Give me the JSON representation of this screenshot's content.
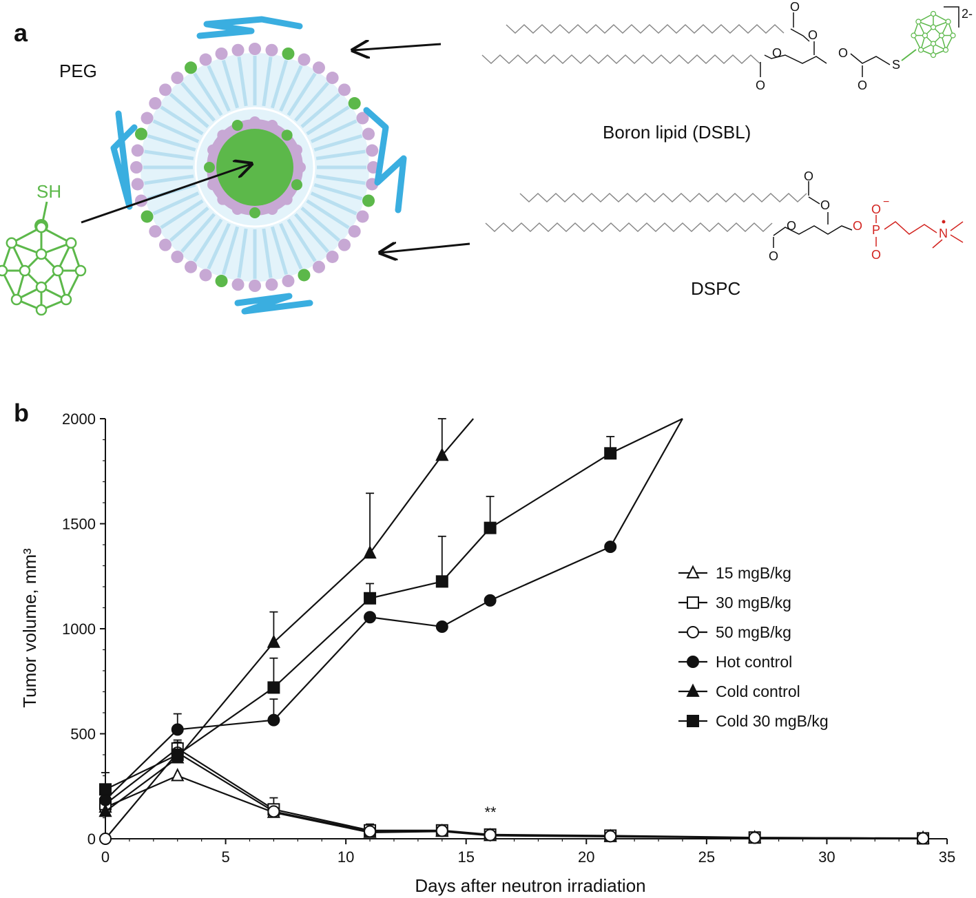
{
  "panel_a": {
    "label": "a",
    "peg_label": "PEG",
    "sh_label": "SH",
    "charge_label": "2-",
    "boron_lipid_label": "Boron lipid (DSBL)",
    "dspc_label": "DSPC",
    "atoms": {
      "O": "O",
      "S": "S",
      "P": "P",
      "N": "N",
      "minus": "−"
    },
    "colors": {
      "peg": "#3aaee0",
      "boron": "#5cb84a",
      "headgroup": "#c7a8d4",
      "tail": "#cfe9f5",
      "phosphocholine": "#d2231f"
    }
  },
  "panel_b": {
    "label": "b",
    "annotation": "**"
  },
  "chart_data": {
    "type": "line",
    "xlabel": "Days after neutron irradiation",
    "ylabel": "Tumor volume, mm³",
    "xlim": [
      0,
      35
    ],
    "ylim": [
      0,
      2000
    ],
    "x_ticks": [
      "0",
      "5",
      "10",
      "15",
      "20",
      "25",
      "30",
      "35"
    ],
    "y_ticks": [
      "0",
      "500",
      "1000",
      "1500",
      "2000"
    ],
    "legend_position": "right",
    "series": [
      {
        "name": "15 mgB/kg",
        "marker": "triangle-open",
        "points": [
          [
            0,
            150
          ],
          [
            3,
            300
          ],
          [
            7,
            125
          ],
          [
            11,
            30
          ],
          [
            14,
            35
          ],
          [
            16,
            15
          ],
          [
            21,
            10
          ],
          [
            27,
            5
          ],
          [
            34,
            3
          ]
        ],
        "err": [
          0,
          0,
          0,
          0,
          0,
          0,
          0,
          0,
          0
        ]
      },
      {
        "name": "30 mgB/kg",
        "marker": "square-open",
        "points": [
          [
            0,
            165
          ],
          [
            3,
            430
          ],
          [
            7,
            140
          ],
          [
            11,
            40
          ],
          [
            14,
            40
          ],
          [
            16,
            20
          ],
          [
            21,
            15
          ],
          [
            27,
            6
          ],
          [
            34,
            2
          ]
        ],
        "err": [
          0,
          40,
          55,
          30,
          0,
          0,
          0,
          0,
          0
        ]
      },
      {
        "name": "50 mgB/kg",
        "marker": "circle-open",
        "points": [
          [
            0,
            0
          ],
          [
            3,
            410
          ],
          [
            7,
            130
          ],
          [
            11,
            35
          ],
          [
            14,
            38
          ],
          [
            16,
            18
          ],
          [
            21,
            12
          ],
          [
            27,
            5
          ],
          [
            34,
            2
          ]
        ],
        "err": [
          0,
          0,
          0,
          0,
          0,
          0,
          0,
          0,
          0
        ]
      },
      {
        "name": "Hot control",
        "marker": "circle-filled",
        "points": [
          [
            0,
            185
          ],
          [
            3,
            520
          ],
          [
            7,
            565
          ],
          [
            11,
            1055
          ],
          [
            14,
            1010
          ],
          [
            16,
            1135
          ],
          [
            21,
            1390
          ],
          [
            24,
            2000
          ]
        ],
        "err": [
          130,
          75,
          100,
          0,
          0,
          0,
          0,
          0
        ]
      },
      {
        "name": "Cold control",
        "marker": "triangle-filled",
        "points": [
          [
            0,
            130
          ],
          [
            3,
            385
          ],
          [
            7,
            935
          ],
          [
            11,
            1360
          ],
          [
            14,
            1825
          ],
          [
            15.3,
            2000
          ]
        ],
        "err": [
          0,
          0,
          145,
          285,
          180,
          0
        ]
      },
      {
        "name": "Cold 30 mgB/kg",
        "marker": "square-filled",
        "points": [
          [
            0,
            235
          ],
          [
            3,
            400
          ],
          [
            7,
            720
          ],
          [
            11,
            1145
          ],
          [
            14,
            1225
          ],
          [
            16,
            1480
          ],
          [
            21,
            1835
          ],
          [
            24,
            2000
          ]
        ],
        "err": [
          0,
          60,
          140,
          70,
          215,
          150,
          80,
          0
        ]
      }
    ]
  }
}
